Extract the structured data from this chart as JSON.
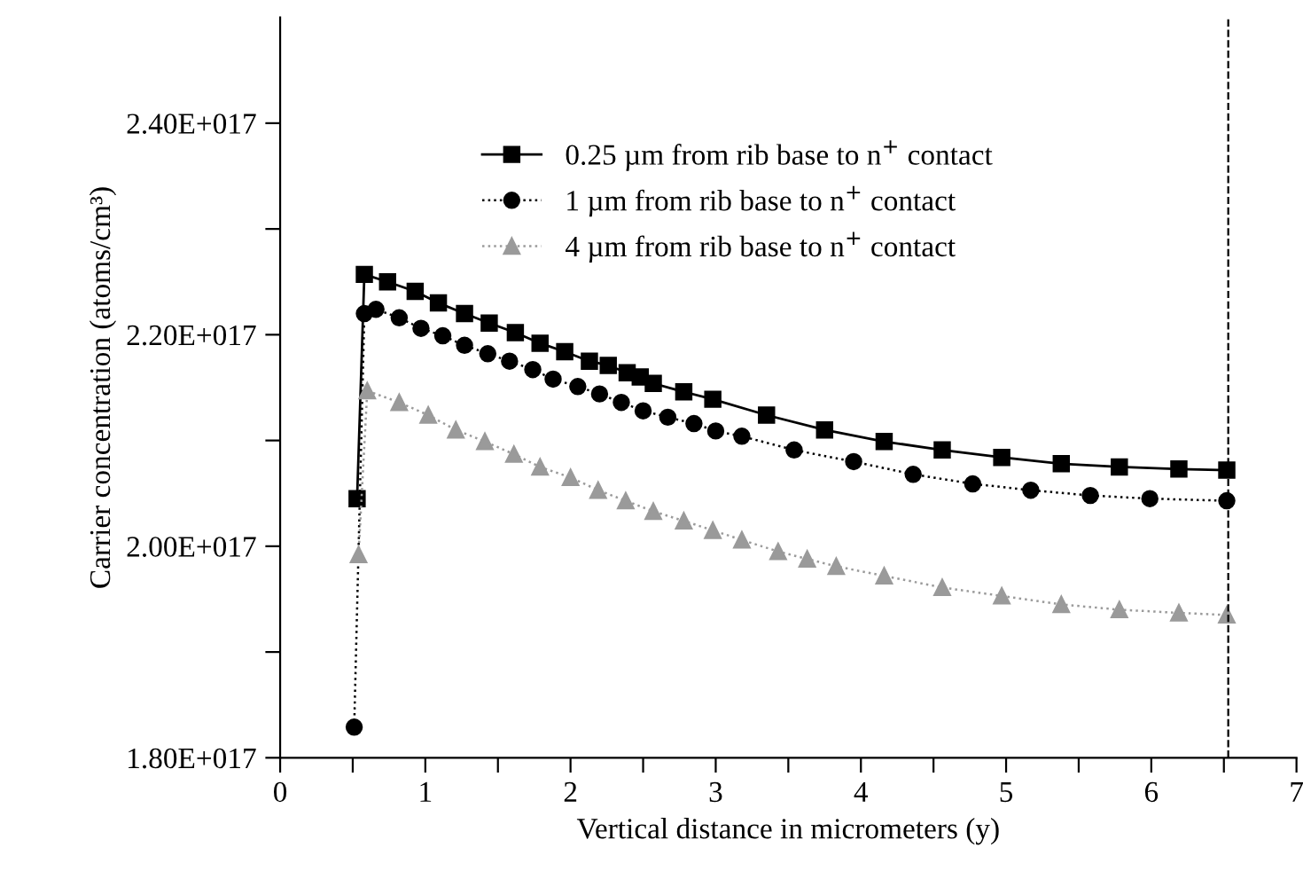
{
  "chart_data": {
    "type": "line",
    "xlabel": "Vertical distance in micrometers (y)",
    "ylabel": "Carrier concentration (atoms/cm³)",
    "xlim": [
      0,
      7
    ],
    "ylim": [
      1.8e+17,
      2.5e+17
    ],
    "xticks": [
      0,
      {
        "value": 0.5,
        "label": null
      },
      1,
      {
        "value": 1.5,
        "label": null
      },
      2,
      {
        "value": 2.5,
        "label": null
      },
      3,
      {
        "value": 3.5,
        "label": null
      },
      4,
      {
        "value": 4.5,
        "label": null
      },
      5,
      {
        "value": 5.5,
        "label": null
      },
      6,
      {
        "value": 6.5,
        "label": null
      },
      7
    ],
    "yticks": [
      {
        "value": 1.8e+17,
        "label": "1.80E+017"
      },
      {
        "value": 1.9e+17,
        "label": null
      },
      {
        "value": 2e+17,
        "label": "2.00E+017"
      },
      {
        "value": 2.1e+17,
        "label": null
      },
      {
        "value": 2.2e+17,
        "label": "2.20E+017"
      },
      {
        "value": 2.3e+17,
        "label": null
      },
      {
        "value": 2.4e+17,
        "label": "2.40E+017"
      }
    ],
    "grid": false,
    "legend": "top",
    "ref_lines": [
      {
        "axis": "x",
        "value": 6.53,
        "color": "#000000",
        "line_style": "dashed"
      }
    ],
    "series": [
      {
        "name": "0.25 µm from rib base to n$^{+}$ contact",
        "color": "#000000",
        "marker": "square",
        "line_style": "solid",
        "x": [
          0.53,
          0.58,
          0.74,
          0.93,
          1.09,
          1.27,
          1.44,
          1.62,
          1.79,
          1.96,
          2.13,
          2.26,
          2.39,
          2.48,
          2.57,
          2.78,
          2.98,
          3.35,
          3.75,
          4.16,
          4.56,
          4.97,
          5.38,
          5.78,
          6.19,
          6.52
        ],
        "values": [
          2.045e+17,
          2.257e+17,
          2.25e+17,
          2.241e+17,
          2.23e+17,
          2.22e+17,
          2.211e+17,
          2.202e+17,
          2.192e+17,
          2.184e+17,
          2.175e+17,
          2.171e+17,
          2.164e+17,
          2.16e+17,
          2.154e+17,
          2.146e+17,
          2.139e+17,
          2.124e+17,
          2.11e+17,
          2.099e+17,
          2.091e+17,
          2.084e+17,
          2.078e+17,
          2.075e+17,
          2.073e+17,
          2.072e+17
        ]
      },
      {
        "name": "1 µm from rib base to n$^{+}$ contact",
        "color": "#000000",
        "marker": "circle",
        "line_style": "dotted",
        "x": [
          0.51,
          0.58,
          0.66,
          0.82,
          0.97,
          1.12,
          1.27,
          1.43,
          1.58,
          1.74,
          1.88,
          2.05,
          2.2,
          2.35,
          2.5,
          2.67,
          2.85,
          3.0,
          3.18,
          3.54,
          3.95,
          4.36,
          4.77,
          5.17,
          5.58,
          5.99,
          6.52
        ],
        "values": [
          1.829e+17,
          2.22e+17,
          2.224e+17,
          2.216e+17,
          2.206e+17,
          2.199e+17,
          2.19e+17,
          2.182e+17,
          2.175e+17,
          2.167e+17,
          2.158e+17,
          2.151e+17,
          2.144e+17,
          2.136e+17,
          2.128e+17,
          2.122e+17,
          2.116e+17,
          2.109e+17,
          2.104e+17,
          2.091e+17,
          2.08e+17,
          2.068e+17,
          2.059e+17,
          2.053e+17,
          2.048e+17,
          2.045e+17,
          2.043e+17
        ]
      },
      {
        "name": "4 µm from rib base to n$^{+}$ contact",
        "color": "#9a9a9a",
        "marker": "triangle",
        "line_style": "dotted",
        "x": [
          0.54,
          0.6,
          0.82,
          1.02,
          1.21,
          1.41,
          1.61,
          1.79,
          2.0,
          2.19,
          2.38,
          2.57,
          2.78,
          2.98,
          3.18,
          3.43,
          3.63,
          3.83,
          4.16,
          4.56,
          4.97,
          5.38,
          5.78,
          6.19,
          6.52
        ],
        "values": [
          1.992e+17,
          2.147e+17,
          2.136e+17,
          2.124e+17,
          2.11e+17,
          2.099e+17,
          2.087e+17,
          2.075e+17,
          2.065e+17,
          2.053e+17,
          2.043e+17,
          2.033e+17,
          2.024e+17,
          2.015e+17,
          2.006e+17,
          1.995e+17,
          1.988e+17,
          1.981e+17,
          1.972e+17,
          1.961e+17,
          1.953e+17,
          1.945e+17,
          1.94e+17,
          1.937e+17,
          1.935e+17
        ]
      }
    ]
  }
}
